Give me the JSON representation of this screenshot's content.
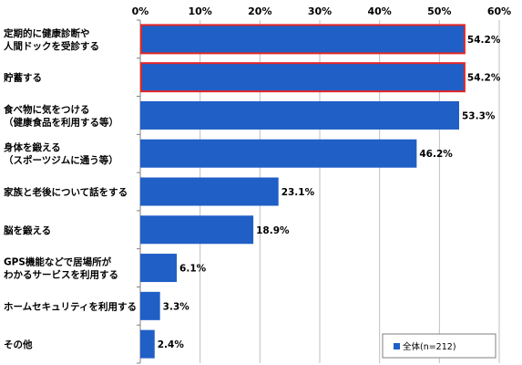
{
  "chart_data": {
    "type": "bar",
    "orientation": "horizontal",
    "xlim": [
      0,
      60
    ],
    "ticks": [
      "0%",
      "10%",
      "20%",
      "30%",
      "40%",
      "50%",
      "60%"
    ],
    "categories": [
      [
        "定期的に健康診断や",
        "人間ドックを受診する"
      ],
      [
        "貯蓄する"
      ],
      [
        "食べ物に気をつける",
        "（健康食品を利用する等）"
      ],
      [
        "身体を鍛える",
        "（スポーツジムに通う等）"
      ],
      [
        "家族と老後について話をする"
      ],
      [
        "脳を鍛える"
      ],
      [
        "GPS機能などで居場所が",
        "わかるサービスを利用する"
      ],
      [
        "ホームセキュリティを利用する"
      ],
      [
        "その他"
      ]
    ],
    "series": [
      {
        "name": "全体(n=212)",
        "values": [
          54.2,
          54.2,
          53.3,
          46.2,
          23.1,
          18.9,
          6.1,
          3.3,
          2.4
        ],
        "labels": [
          "54.2%",
          "54.2%",
          "53.3%",
          "46.2%",
          "23.1%",
          "18.9%",
          "6.1%",
          "3.3%",
          "2.4%"
        ]
      }
    ],
    "highlighted": [
      0,
      1
    ],
    "colors": {
      "bar": "#1f5fc6",
      "highlight_border": "#e32626",
      "grid": "#bfbfbf"
    },
    "legend": "bottom-right",
    "grid": true
  }
}
